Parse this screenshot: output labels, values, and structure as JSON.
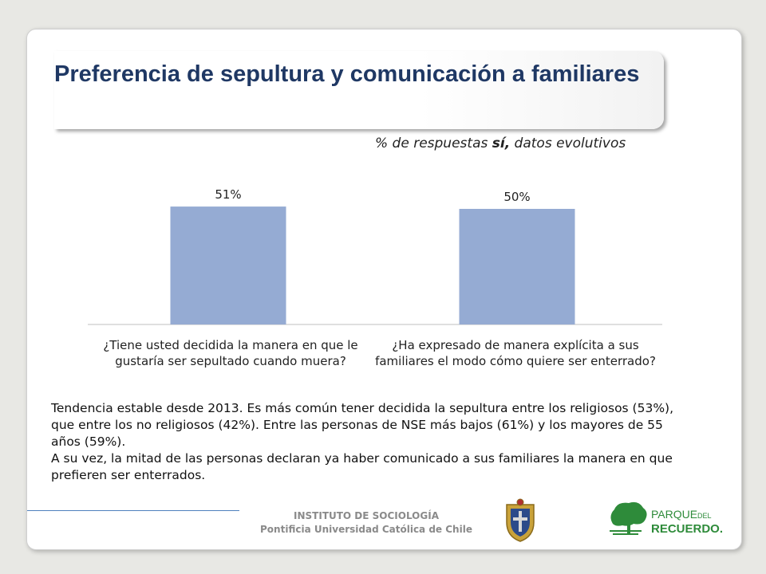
{
  "title": "Preferencia de sepultura y comunicación a familiares",
  "subtitle": {
    "prefix": "% de respuestas ",
    "bold": "sí,",
    "suffix": " datos evolutivos"
  },
  "chart_data": {
    "type": "bar",
    "categories": [
      "¿Tiene usted decidida la manera en que le gustaría ser sepultado cuando muera?",
      "¿Ha expresado de manera explícita a sus familiares el modo cómo quiere ser enterrado?"
    ],
    "values": [
      51,
      50
    ],
    "value_labels": [
      "51%",
      "50%"
    ],
    "bar_color": "#95abd3",
    "grid": false,
    "legend": "none"
  },
  "body": {
    "p1": "Tendencia estable desde 2013. Es más común tener decidida la sepultura entre los religiosos (53%), que entre los no religiosos (42%). Entre las personas de NSE más bajos (61%) y los mayores de 55 años (59%).",
    "p2": "A su vez, la mitad de las personas declaran ya haber comunicado a sus familiares la manera en que prefieren ser enterrados."
  },
  "footer": {
    "institute": "INSTITUTO DE SOCIOLOGÍA",
    "university": "Pontificia Universidad Católica de Chile"
  },
  "logo": {
    "name_part1": "PARQUE",
    "name_part2": "DEL",
    "name_part3": "RECUERDO."
  },
  "colors": {
    "title": "#1f3864",
    "bar": "#95abd3",
    "footer_line": "#4f81bd",
    "logo_green": "#2e8b3a"
  }
}
